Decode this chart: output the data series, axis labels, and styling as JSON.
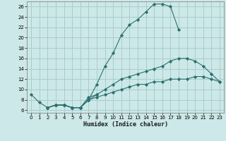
{
  "xlabel": "Humidex (Indice chaleur)",
  "bg_color": "#cce8e8",
  "grid_color": "#aacccc",
  "line_color": "#2d7070",
  "series": [
    {
      "x": [
        0,
        1,
        2,
        3,
        4,
        5,
        6,
        7,
        8
      ],
      "y": [
        9,
        7.5,
        6.5,
        7,
        7,
        6.5,
        6.5,
        8.5,
        9
      ]
    },
    {
      "x": [
        2,
        3,
        4,
        5,
        6,
        7,
        8,
        9,
        10,
        11,
        12,
        13,
        14,
        15,
        16,
        17,
        18
      ],
      "y": [
        6.5,
        7,
        7,
        6.5,
        6.5,
        8,
        11,
        14.5,
        17,
        20.5,
        22.5,
        23.5,
        25,
        26.5,
        26.5,
        26,
        21.5
      ]
    },
    {
      "x": [
        2,
        3,
        4,
        5,
        6,
        7,
        8,
        9,
        10,
        11,
        12,
        13,
        14,
        15,
        16,
        17,
        18,
        19,
        20,
        21,
        22,
        23
      ],
      "y": [
        6.5,
        7,
        7,
        6.5,
        6.5,
        8,
        9,
        10,
        11,
        12,
        12.5,
        13,
        13.5,
        14,
        14.5,
        15.5,
        16,
        16,
        15.5,
        14.5,
        13,
        11.5
      ]
    },
    {
      "x": [
        2,
        3,
        4,
        5,
        6,
        7,
        8,
        9,
        10,
        11,
        12,
        13,
        14,
        15,
        16,
        17,
        18,
        19,
        20,
        21,
        22,
        23
      ],
      "y": [
        6.5,
        7,
        7,
        6.5,
        6.5,
        8,
        8.5,
        9,
        9.5,
        10,
        10.5,
        11,
        11,
        11.5,
        11.5,
        12,
        12,
        12,
        12.5,
        12.5,
        12,
        11.5
      ]
    }
  ],
  "xlim": [
    -0.5,
    23.5
  ],
  "ylim": [
    5.5,
    27
  ],
  "yticks": [
    6,
    8,
    10,
    12,
    14,
    16,
    18,
    20,
    22,
    24,
    26
  ],
  "xticks": [
    0,
    1,
    2,
    3,
    4,
    5,
    6,
    7,
    8,
    9,
    10,
    11,
    12,
    13,
    14,
    15,
    16,
    17,
    18,
    19,
    20,
    21,
    22,
    23
  ]
}
